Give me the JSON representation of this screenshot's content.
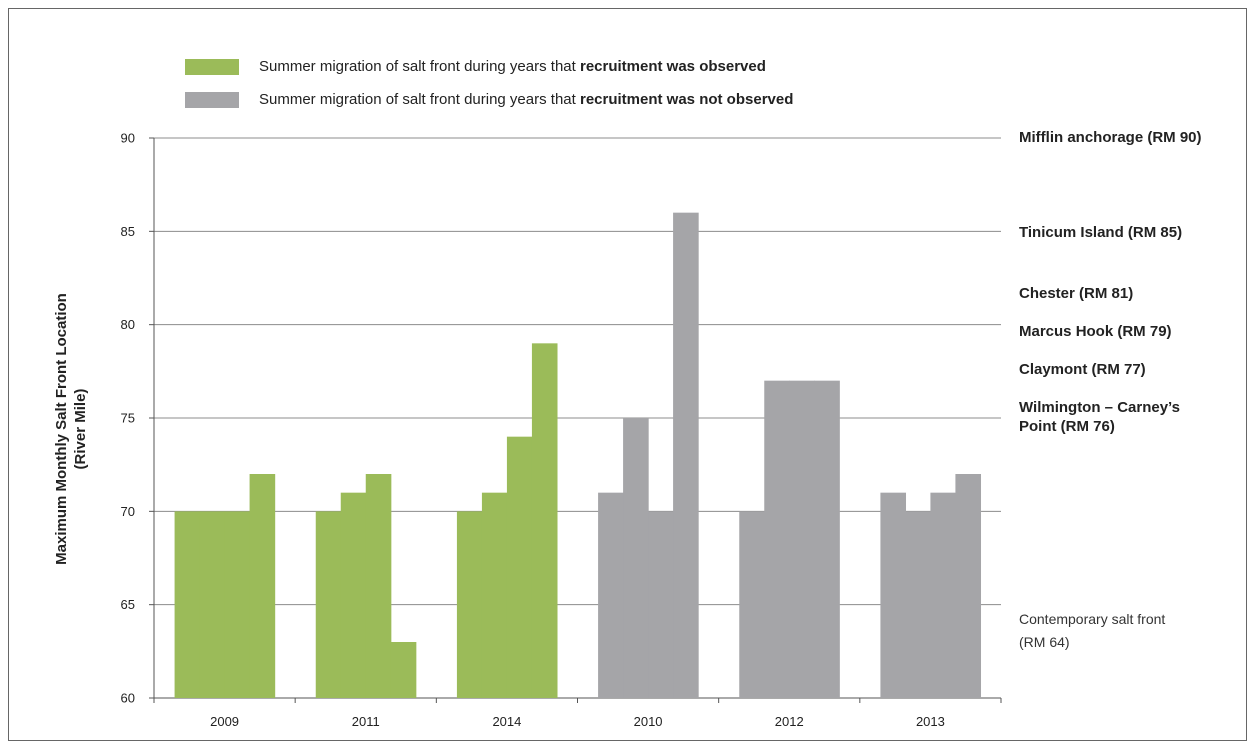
{
  "chart_data": {
    "type": "bar",
    "ylabel": [
      "Maximum Monthly Salt Front Location",
      "(River Mile)"
    ],
    "ylim": [
      60,
      90
    ],
    "yticks": [
      "60",
      "65",
      "70",
      "75",
      "80",
      "85",
      "90"
    ],
    "grid": "horizontal at 65, 70, 75, 80, 85, 90",
    "legend": {
      "placement": "top-left",
      "items": [
        {
          "prefix": "Summer migration of salt front during years that ",
          "bold": "recruitment was observed",
          "color": "#9bbb59"
        },
        {
          "prefix": "Summer migration of salt front during years that ",
          "bold": "recruitment was not observed",
          "color": "#a5a5a8"
        }
      ]
    },
    "categories": [
      "2009",
      "2011",
      "2014",
      "2010",
      "2012",
      "2013"
    ],
    "groups": [
      {
        "year": "2009",
        "recruitment_observed": true,
        "monthly_values": [
          70,
          70,
          70,
          72
        ]
      },
      {
        "year": "2011",
        "recruitment_observed": true,
        "monthly_values": [
          70,
          71,
          72,
          63
        ]
      },
      {
        "year": "2014",
        "recruitment_observed": true,
        "monthly_values": [
          70,
          71,
          74,
          79
        ]
      },
      {
        "year": "2010",
        "recruitment_observed": false,
        "monthly_values": [
          71,
          75,
          70,
          86
        ]
      },
      {
        "year": "2012",
        "recruitment_observed": false,
        "monthly_values": [
          70,
          77,
          77,
          77
        ]
      },
      {
        "year": "2013",
        "recruitment_observed": false,
        "monthly_values": [
          71,
          70,
          71,
          72
        ]
      }
    ],
    "reference_labels": [
      {
        "text": "Mifflin anchorage (RM 90)",
        "value": 90,
        "bold": true
      },
      {
        "text": "Tinicum Island (RM 85)",
        "value": 85,
        "bold": true
      },
      {
        "text": "Chester (RM 81)",
        "value": 81,
        "bold": true
      },
      {
        "text": "Marcus Hook (RM 79)",
        "value": 79,
        "bold": true
      },
      {
        "text": "Claymont (RM 77)",
        "value": 77,
        "bold": true
      },
      {
        "text": "Wilmington – Carney’s\nPoint  (RM 76)",
        "value": 76,
        "bold": true
      },
      {
        "text": "Contemporary salt front\n(RM 64)",
        "value": 64,
        "bold": false
      }
    ],
    "colors": {
      "observed": "#9bbb59",
      "not_observed": "#a5a5a8",
      "grid": "#8c8c8c"
    }
  }
}
